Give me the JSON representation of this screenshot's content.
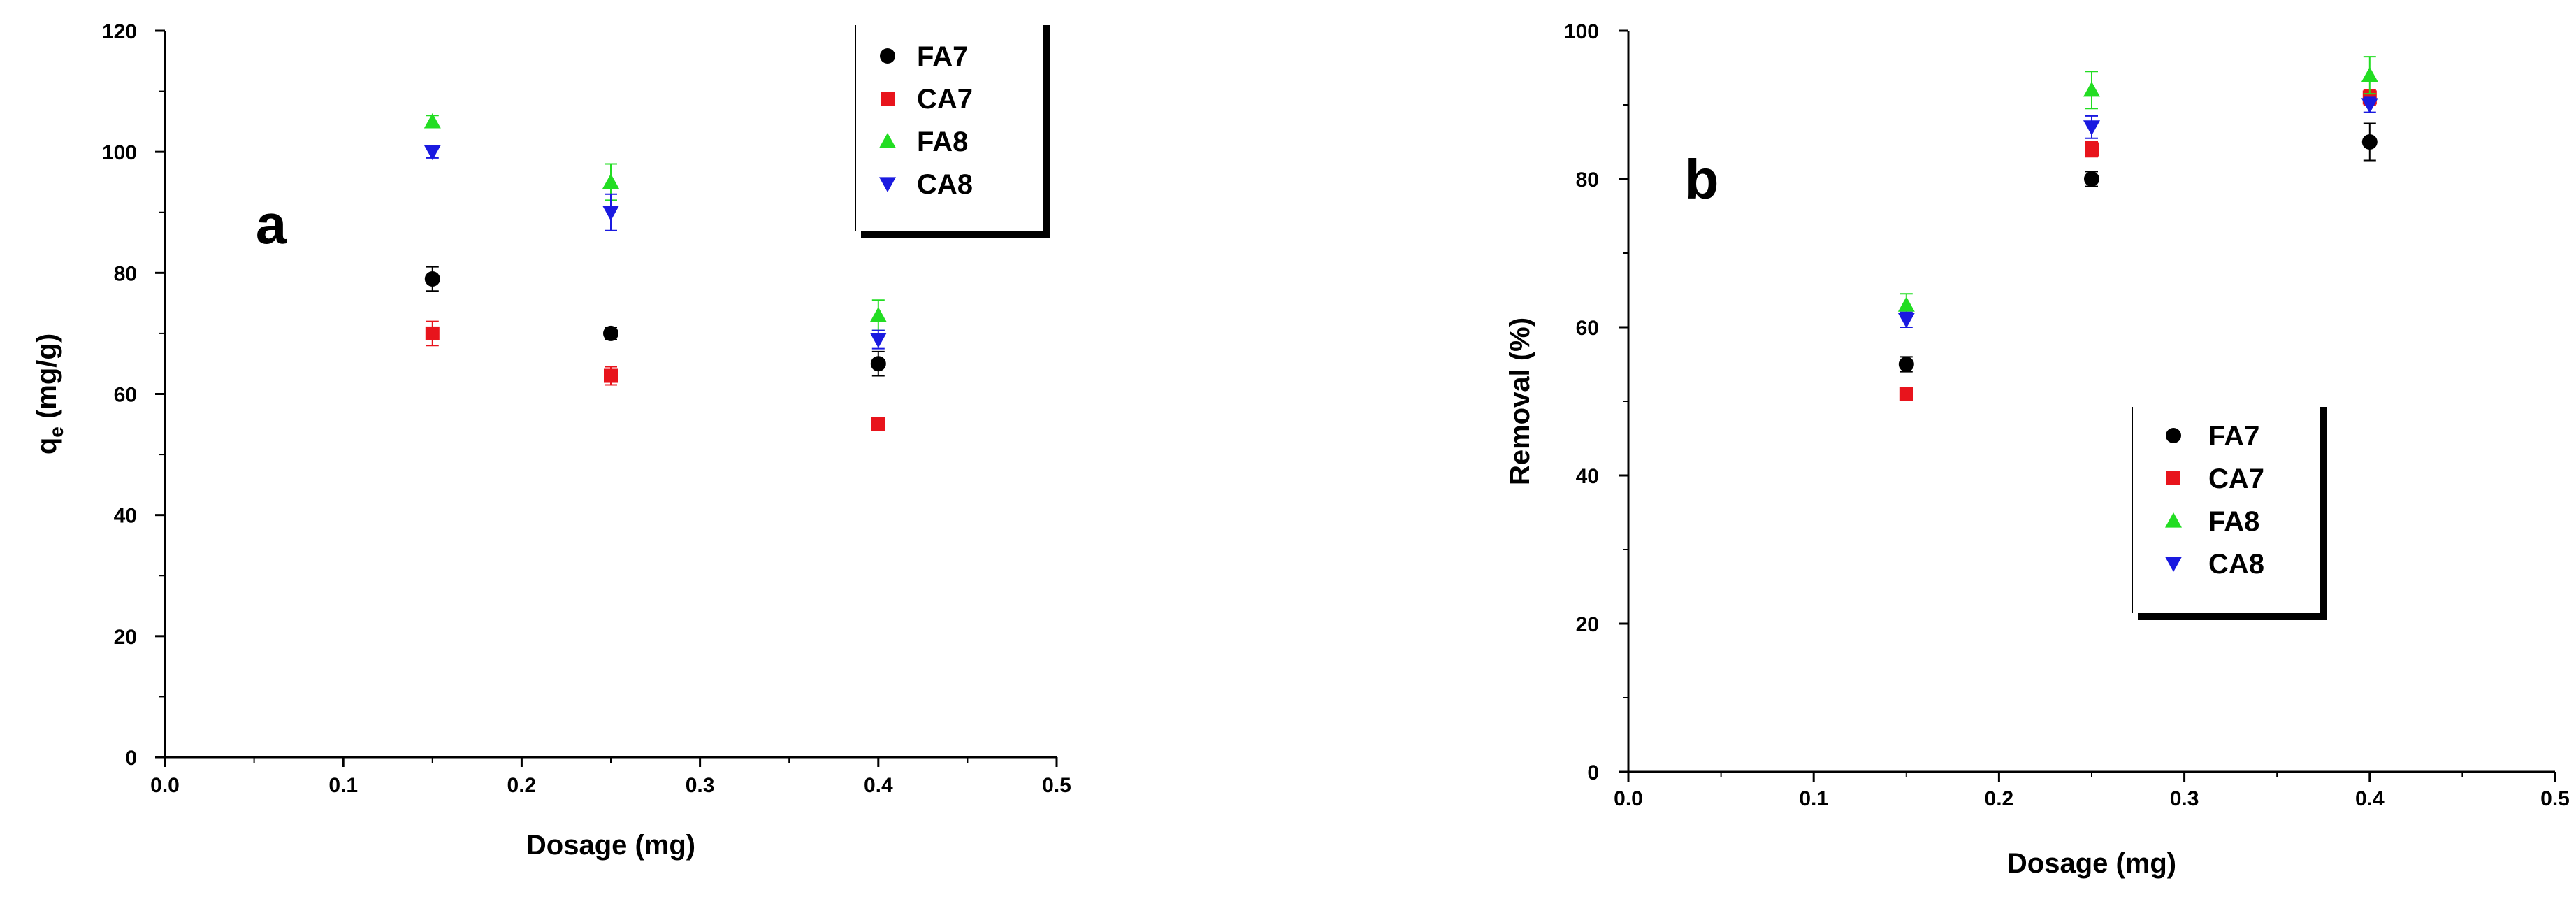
{
  "chart_data": [
    {
      "type": "scatter",
      "panel_label": "a",
      "xlabel": "Dosage (mg)",
      "ylabel": "q",
      "ylabel_sub": "e",
      "ylabel_unit": " (mg/g)",
      "xlim": [
        0.0,
        0.5
      ],
      "ylim": [
        0,
        120
      ],
      "xticks": [
        "0.0",
        "0.1",
        "0.2",
        "0.3",
        "0.4",
        "0.5"
      ],
      "yticks": [
        "0",
        "20",
        "40",
        "60",
        "80",
        "100",
        "120"
      ],
      "legend_position": "top-right",
      "series": [
        {
          "name": "FA7",
          "marker": "circle",
          "color": "#000000",
          "x": [
            0.15,
            0.25,
            0.4
          ],
          "y": [
            79,
            70,
            65
          ],
          "err": [
            2,
            1,
            2
          ]
        },
        {
          "name": "CA7",
          "marker": "square",
          "color": "#e8141c",
          "x": [
            0.15,
            0.25,
            0.4
          ],
          "y": [
            70,
            63,
            55
          ],
          "err": [
            2,
            1.5,
            1
          ]
        },
        {
          "name": "FA8",
          "marker": "triangle-up",
          "color": "#22dd22",
          "x": [
            0.15,
            0.25,
            0.4
          ],
          "y": [
            105,
            95,
            73
          ],
          "err": [
            1,
            3,
            2.5
          ]
        },
        {
          "name": "CA8",
          "marker": "triangle-down",
          "color": "#1a1ae0",
          "x": [
            0.15,
            0.25,
            0.4
          ],
          "y": [
            100,
            90,
            69
          ],
          "err": [
            1,
            3,
            1.5
          ]
        }
      ]
    },
    {
      "type": "scatter",
      "panel_label": "b",
      "xlabel": "Dosage (mg)",
      "ylabel": "Removal (%)",
      "xlim": [
        0.0,
        0.5
      ],
      "ylim": [
        0,
        100
      ],
      "xticks": [
        "0.0",
        "0.1",
        "0.2",
        "0.3",
        "0.4",
        "0.5"
      ],
      "yticks": [
        "0",
        "20",
        "40",
        "60",
        "80",
        "100"
      ],
      "legend_position": "center-right",
      "series": [
        {
          "name": "FA7",
          "marker": "circle",
          "color": "#000000",
          "x": [
            0.15,
            0.25,
            0.4
          ],
          "y": [
            55,
            80,
            85
          ],
          "err": [
            1,
            1,
            2.5
          ]
        },
        {
          "name": "CA7",
          "marker": "square",
          "color": "#e8141c",
          "x": [
            0.15,
            0.25,
            0.4
          ],
          "y": [
            51,
            84,
            91
          ],
          "err": [
            0.5,
            1,
            1
          ]
        },
        {
          "name": "FA8",
          "marker": "triangle-up",
          "color": "#22dd22",
          "x": [
            0.15,
            0.25,
            0.4
          ],
          "y": [
            63,
            92,
            94
          ],
          "err": [
            1.5,
            2.5,
            2.5
          ]
        },
        {
          "name": "CA8",
          "marker": "triangle-down",
          "color": "#1a1ae0",
          "x": [
            0.15,
            0.25,
            0.4
          ],
          "y": [
            61,
            87,
            90
          ],
          "err": [
            1,
            1.5,
            1
          ]
        }
      ]
    }
  ]
}
